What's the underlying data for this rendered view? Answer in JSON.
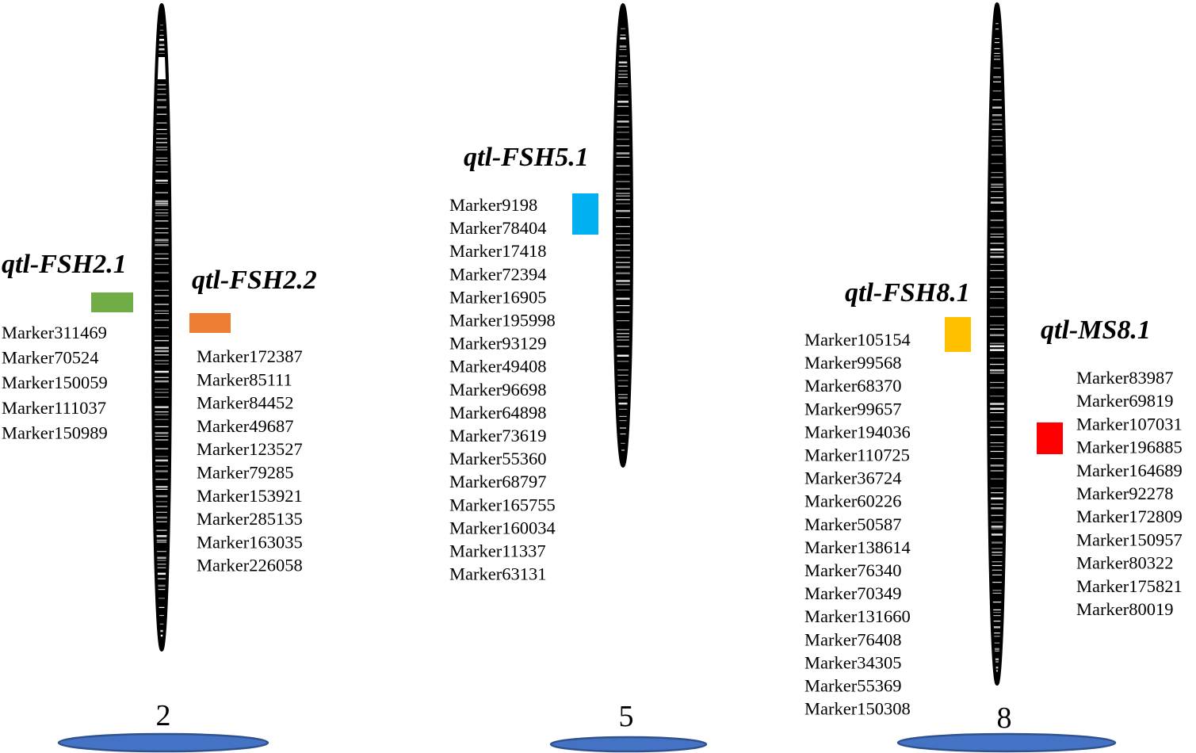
{
  "chromosomes": [
    {
      "id": "2",
      "label": "2",
      "qtls": [
        {
          "name": "qtl-FSH2.1",
          "color": "#70ad47",
          "markers": [
            "Marker311469",
            "Marker70524",
            "Marker150059",
            "Marker111037",
            "Marker150989"
          ]
        },
        {
          "name": "qtl-FSH2.2",
          "color": "#ed7d31",
          "markers": [
            "Marker172387",
            "Marker85111",
            "Marker84452",
            "Marker49687",
            "Marker123527",
            "Marker79285",
            "Marker153921",
            "Marker285135",
            "Marker163035",
            "Marker226058"
          ]
        }
      ]
    },
    {
      "id": "5",
      "label": "5",
      "qtls": [
        {
          "name": "qtl-FSH5.1",
          "color": "#00b0f0",
          "markers": [
            "Marker9198",
            "Marker78404",
            "Marker17418",
            "Marker72394",
            "Marker16905",
            "Marker195998",
            "Marker93129",
            "Marker49408",
            "Marker96698",
            "Marker64898",
            "Marker73619",
            "Marker55360",
            "Marker68797",
            "Marker165755",
            "Marker160034",
            "Marker11337",
            "Marker63131"
          ]
        }
      ]
    },
    {
      "id": "8",
      "label": "8",
      "qtls": [
        {
          "name": "qtl-FSH8.1",
          "color": "#ffc000",
          "markers": [
            "Marker105154",
            "Marker99568",
            "Marker68370",
            "Marker99657",
            "Marker194036",
            "Marker110725",
            "Marker36724",
            "Marker60226",
            "Marker50587",
            "Marker138614",
            "Marker76340",
            "Marker70349",
            "Marker131660",
            "Marker76408",
            "Marker34305",
            "Marker55369",
            "Marker150308"
          ]
        },
        {
          "name": "qtl-MS8.1",
          "color": "#ff0000",
          "markers": [
            "Marker83987",
            "Marker69819",
            "Marker107031",
            "Marker196885",
            "Marker164689",
            "Marker92278",
            "Marker172809",
            "Marker150957",
            "Marker80322",
            "Marker175821",
            "Marker80019"
          ]
        }
      ]
    }
  ],
  "colors": {
    "chromosome_body": "#000000",
    "chromosome_band": "#ffffff",
    "base_ellipse_fill": "#4472c4",
    "base_ellipse_stroke": "#2f528f"
  }
}
